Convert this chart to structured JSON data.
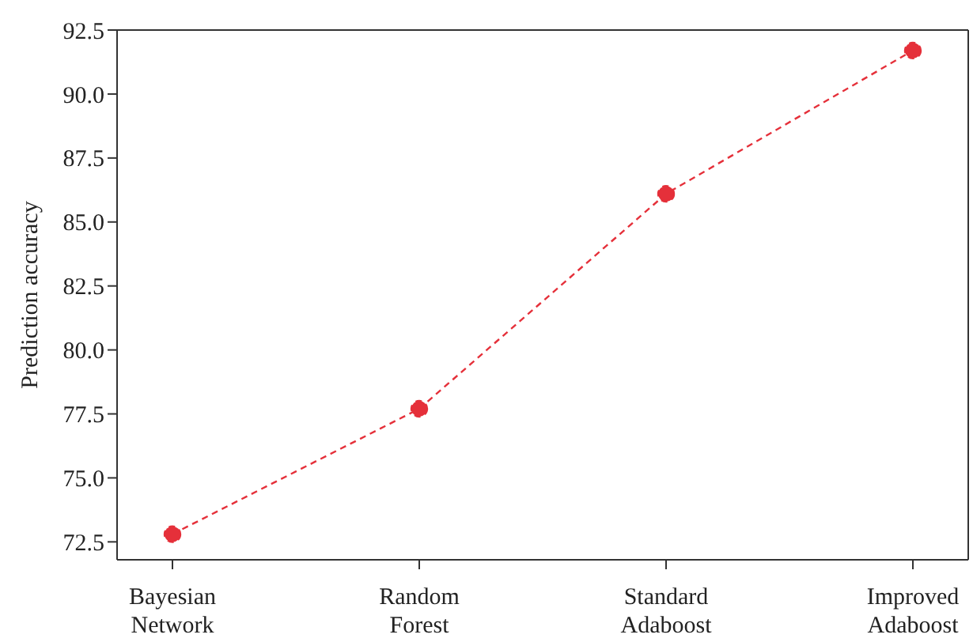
{
  "chart_data": {
    "type": "line",
    "ylabel": "Prediction accuracy",
    "categories": [
      "Bayesian\nNetwork",
      "Random\nForest",
      "Standard\nAdaboost",
      "Improved\nAdaboost"
    ],
    "series": [
      {
        "color": "#e5303a",
        "values": [
          72.8,
          77.7,
          86.1,
          91.7
        ]
      }
    ],
    "ylim": [
      71.8,
      92.5
    ],
    "yticks": [
      {
        "value": 72.5,
        "label": "72.5"
      },
      {
        "value": 75,
        "label": "75.0"
      },
      {
        "value": 77.5,
        "label": "77.5"
      },
      {
        "value": 80,
        "label": "80.0"
      },
      {
        "value": 82.5,
        "label": "82.5"
      },
      {
        "value": 85,
        "label": "85.0"
      },
      {
        "value": 87.5,
        "label": "87.5"
      },
      {
        "value": 90,
        "label": "90.0"
      },
      {
        "value": 92.5,
        "label": "92.5"
      }
    ],
    "grid": false,
    "legend": false,
    "marker": "circle",
    "line_style": "dashed"
  }
}
